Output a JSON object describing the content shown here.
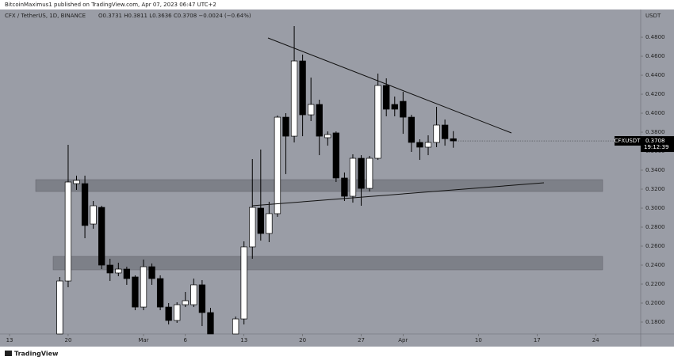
{
  "chart_data": {
    "type": "candlestick",
    "header": "BitcoinMaximus1 published on TradingView.com, Apr 07, 2023 06:47 UTC+2",
    "title": "CFX / TetherUS, 1D, BINANCE",
    "ohlc_text": "O0.3731 H0.3811 L0.3636 C0.3708 −0.0024 (−0.64%)",
    "currency": "USDT",
    "symbol": "CFXUSDT",
    "last_price": {
      "value": 0.3708,
      "label": "0.3708"
    },
    "countdown": "19:12:39",
    "brand": "TradingView",
    "x": [
      6,
      7,
      8,
      9,
      10,
      11,
      12,
      13,
      14,
      15,
      16,
      17,
      18,
      19,
      20,
      21,
      22,
      23,
      24,
      27,
      28,
      29,
      30,
      31,
      32,
      33,
      34,
      35,
      36,
      37,
      38,
      39,
      40,
      41,
      42,
      43,
      44,
      45,
      46,
      47,
      48,
      49,
      50,
      51,
      52,
      53
    ],
    "open": [
      0.1675,
      0.2233,
      0.3258,
      0.3258,
      0.2833,
      0.3008,
      0.24,
      0.2317,
      0.2358,
      0.2275,
      0.1958,
      0.2383,
      0.2258,
      0.1958,
      0.1817,
      0.1983,
      0.1983,
      0.2192,
      0.19,
      0.1675,
      0.1833,
      0.2592,
      0.3,
      0.2733,
      0.2942,
      0.3958,
      0.3758,
      0.455,
      0.3983,
      0.4092,
      0.3742,
      0.3792,
      0.3317,
      0.3125,
      0.3525,
      0.3208,
      0.3525,
      0.4292,
      0.4092,
      0.4125,
      0.3958,
      0.3692,
      0.3642,
      0.3692,
      0.3875,
      0.3731
    ],
    "high": [
      0.2275,
      0.3667,
      0.3342,
      0.3342,
      0.3075,
      0.3025,
      0.2467,
      0.2425,
      0.2383,
      0.2292,
      0.2458,
      0.2417,
      0.2292,
      0.2,
      0.2008,
      0.2117,
      0.2258,
      0.2242,
      0.195,
      0.1858,
      0.265,
      0.3517,
      0.3617,
      0.3067,
      0.3975,
      0.4,
      0.4917,
      0.4617,
      0.4375,
      0.4142,
      0.3808,
      0.3808,
      0.3375,
      0.3567,
      0.3558,
      0.355,
      0.4417,
      0.4367,
      0.4175,
      0.4225,
      0.3983,
      0.3725,
      0.3767,
      0.4067,
      0.3933,
      0.3811
    ],
    "low": [
      0.1675,
      0.2167,
      0.3192,
      0.2683,
      0.2783,
      0.2358,
      0.2233,
      0.2283,
      0.2192,
      0.1925,
      0.1925,
      0.2192,
      0.1925,
      0.1775,
      0.1792,
      0.1958,
      0.1958,
      0.1758,
      0.1675,
      0.1675,
      0.1775,
      0.2467,
      0.2658,
      0.2642,
      0.2908,
      0.3358,
      0.3692,
      0.3758,
      0.3917,
      0.3558,
      0.3658,
      0.3275,
      0.3075,
      0.3058,
      0.3025,
      0.3175,
      0.3508,
      0.3967,
      0.3967,
      0.3783,
      0.3592,
      0.3508,
      0.3558,
      0.3642,
      0.3658,
      0.3636
    ],
    "close": [
      0.2233,
      0.3275,
      0.3292,
      0.2817,
      0.3025,
      0.24,
      0.2317,
      0.2358,
      0.2258,
      0.1958,
      0.2383,
      0.2258,
      0.1958,
      0.1817,
      0.1983,
      0.2025,
      0.2192,
      0.19,
      0.1675,
      0.1833,
      0.2592,
      0.3008,
      0.2733,
      0.2942,
      0.3958,
      0.3758,
      0.455,
      0.3983,
      0.4092,
      0.3758,
      0.3775,
      0.3317,
      0.3125,
      0.3525,
      0.3208,
      0.3525,
      0.4292,
      0.4042,
      0.4042,
      0.3958,
      0.3692,
      0.3642,
      0.3692,
      0.3875,
      0.3731,
      0.3708
    ],
    "up_color": "#ffffff",
    "down_color": "#000000",
    "background": "#9a9da6",
    "xlim": [
      -1.14,
      75.38
    ],
    "ylim": [
      0.1675,
      0.5092
    ],
    "xticks": [
      {
        "value": 0,
        "label": "13"
      },
      {
        "value": 7,
        "label": "20"
      },
      {
        "value": 16,
        "label": "Mar"
      },
      {
        "value": 21,
        "label": "6"
      },
      {
        "value": 28,
        "label": "13"
      },
      {
        "value": 35,
        "label": "20"
      },
      {
        "value": 42,
        "label": "27"
      },
      {
        "value": 47,
        "label": "Apr"
      },
      {
        "value": 56,
        "label": "10"
      },
      {
        "value": 63,
        "label": "17"
      },
      {
        "value": 70,
        "label": "24"
      }
    ],
    "yticks": [
      {
        "value": 0.18,
        "label": "0.1800"
      },
      {
        "value": 0.2,
        "label": "0.2000"
      },
      {
        "value": 0.22,
        "label": "0.2200"
      },
      {
        "value": 0.24,
        "label": "0.2400"
      },
      {
        "value": 0.26,
        "label": "0.2600"
      },
      {
        "value": 0.28,
        "label": "0.2800"
      },
      {
        "value": 0.3,
        "label": "0.3000"
      },
      {
        "value": 0.32,
        "label": "0.3200"
      },
      {
        "value": 0.34,
        "label": "0.3400"
      },
      {
        "value": 0.36,
        "label": "0.3600"
      },
      {
        "value": 0.38,
        "label": "0.3800"
      },
      {
        "value": 0.4,
        "label": "0.4000"
      },
      {
        "value": 0.42,
        "label": "0.4200"
      },
      {
        "value": 0.44,
        "label": "0.4400"
      },
      {
        "value": 0.46,
        "label": "0.4600"
      },
      {
        "value": 0.48,
        "label": "0.4800"
      }
    ]
  }
}
